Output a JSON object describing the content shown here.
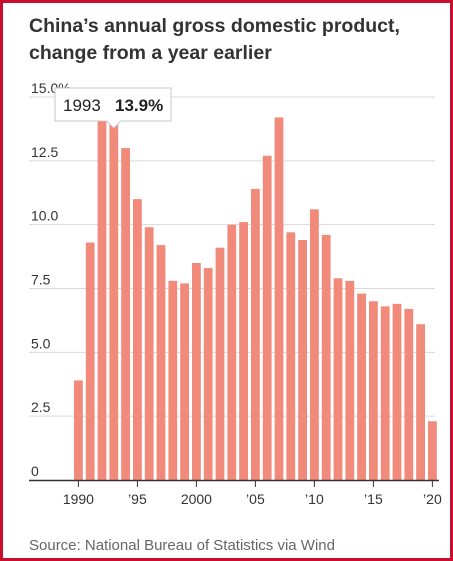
{
  "header": {
    "title_line1": "China’s annual gross domestic product,",
    "title_line2": "change from a year earlier"
  },
  "source": "Source: National Bureau of Statistics via Wind",
  "tooltip": {
    "year": "1993",
    "value": "13.9%"
  },
  "colors": {
    "bar": "#f28a7b",
    "frame": "#c8102e",
    "grid": "#d9d9d9",
    "axis": "#333333"
  },
  "chart_data": {
    "type": "bar",
    "title": "China’s annual gross domestic product, change from a year earlier",
    "categories": [
      1990,
      1991,
      1992,
      1993,
      1994,
      1995,
      1996,
      1997,
      1998,
      1999,
      2000,
      2001,
      2002,
      2003,
      2004,
      2005,
      2006,
      2007,
      2008,
      2009,
      2010,
      2011,
      2012,
      2013,
      2014,
      2015,
      2016,
      2017,
      2018,
      2019,
      2020
    ],
    "values": [
      3.9,
      9.3,
      14.2,
      13.9,
      13.0,
      11.0,
      9.9,
      9.2,
      7.8,
      7.7,
      8.5,
      8.3,
      9.1,
      10.0,
      10.1,
      11.4,
      12.7,
      14.2,
      9.7,
      9.4,
      10.6,
      9.6,
      7.9,
      7.8,
      7.3,
      7.0,
      6.8,
      6.9,
      6.7,
      6.1,
      2.3
    ],
    "y_ticks": [
      {
        "value": 0,
        "label": "0"
      },
      {
        "value": 2.5,
        "label": "2.5"
      },
      {
        "value": 5,
        "label": "5.0"
      },
      {
        "value": 7.5,
        "label": "7.5"
      },
      {
        "value": 10,
        "label": "10.0"
      },
      {
        "value": 12.5,
        "label": "12.5"
      },
      {
        "value": 15,
        "label": "15.0%"
      }
    ],
    "x_ticks": [
      {
        "value": 1990,
        "label": "1990"
      },
      {
        "value": 1995,
        "label": "’95"
      },
      {
        "value": 2000,
        "label": "2000"
      },
      {
        "value": 2005,
        "label": "’05"
      },
      {
        "value": 2010,
        "label": "’10"
      },
      {
        "value": 2015,
        "label": "’15"
      },
      {
        "value": 2020,
        "label": "’20"
      }
    ],
    "ylim": [
      0,
      15
    ],
    "grid": true,
    "highlight": {
      "year": 1993,
      "value": 13.9
    }
  }
}
